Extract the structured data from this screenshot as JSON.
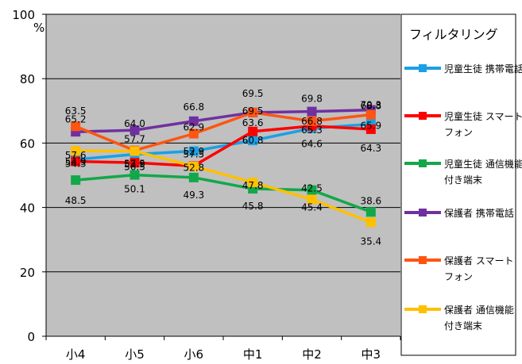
{
  "chart_data": {
    "type": "line",
    "categories": [
      "小4",
      "小5",
      "小6",
      "中1",
      "中2",
      "中3"
    ],
    "y_unit": "%",
    "ylim": [
      0,
      100
    ],
    "yticks": [
      0,
      20,
      40,
      60,
      80,
      100
    ],
    "grid": "horizontal",
    "legend_placement": "right",
    "legend_title": "フィルタリング",
    "series": [
      {
        "name": "児童生徒 携帯電話",
        "color": "#1aa0e6",
        "values": [
          54.9,
          56.5,
          57.5,
          60.8,
          64.6,
          65.9
        ]
      },
      {
        "name": "児童生徒 スマートフォン",
        "color": "#ff0000",
        "values": [
          54.3,
          53.9,
          52.9,
          63.6,
          65.3,
          64.3
        ]
      },
      {
        "name": "児童生徒 通信機能付き端末",
        "color": "#12a84a",
        "values": [
          48.5,
          50.1,
          49.3,
          45.8,
          45.4,
          38.6
        ]
      },
      {
        "name": "保護者 携帯電話",
        "color": "#7030a0",
        "values": [
          63.5,
          64.0,
          66.8,
          69.5,
          69.8,
          70.3
        ]
      },
      {
        "name": "保護者 スマートフォン",
        "color": "#ff5511",
        "values": [
          65.2,
          57.7,
          62.9,
          69.5,
          66.8,
          68.8
        ]
      },
      {
        "name": "保護者 通信機能付き端末",
        "color": "#ffc000",
        "values": [
          57.6,
          57.5,
          52.8,
          47.8,
          42.5,
          35.4
        ]
      }
    ],
    "labels": [
      {
        "text": "65.2",
        "x": 0,
        "y": 65.2,
        "dy": -5
      },
      {
        "text": "63.5",
        "x": 0,
        "y": 63.5,
        "dy": -22
      },
      {
        "text": "57.6",
        "x": 0,
        "y": 57.6,
        "dy": 10
      },
      {
        "text": "54.9",
        "x": 0,
        "y": 54.9,
        "dy": 7
      },
      {
        "text": "54.3",
        "x": 0,
        "y": 54.3,
        "dy": 7
      },
      {
        "text": "48.5",
        "x": 0,
        "y": 48.5,
        "dy": 30
      },
      {
        "text": "64.0",
        "x": 1,
        "y": 64.0,
        "dy": -4
      },
      {
        "text": "57.7",
        "x": 1,
        "y": 57.7,
        "dy": -10
      },
      {
        "text": "56.5",
        "x": 1,
        "y": 56.5,
        "dy": 20
      },
      {
        "text": "53.9",
        "x": 1,
        "y": 53.9,
        "dy": 6
      },
      {
        "text": "57.5",
        "x": 1,
        "y": 57.5,
        "dy": 20
      },
      {
        "text": "50.1",
        "x": 1,
        "y": 50.1,
        "dy": 22
      },
      {
        "text": "66.8",
        "x": 2,
        "y": 66.8,
        "dy": -14
      },
      {
        "text": "62.9",
        "x": 2,
        "y": 62.9,
        "dy": -4
      },
      {
        "text": "57.5",
        "x": 2,
        "y": 57.5,
        "dy": 8
      },
      {
        "text": "52.9",
        "x": 2,
        "y": 52.9,
        "dy": -14
      },
      {
        "text": "52.8",
        "x": 2,
        "y": 52.8,
        "dy": 6
      },
      {
        "text": "49.3",
        "x": 2,
        "y": 49.3,
        "dy": 26
      },
      {
        "text": "69.5",
        "x": 3,
        "y": 69.5,
        "dy": -20
      },
      {
        "text": "69.5",
        "x": 3,
        "y": 69.5,
        "dy": 2
      },
      {
        "text": "60.8",
        "x": 3,
        "y": 60.8,
        "dy": 4
      },
      {
        "text": "63.6",
        "x": 3,
        "y": 63.6,
        "dy": -7
      },
      {
        "text": "47.8",
        "x": 3,
        "y": 47.8,
        "dy": 8
      },
      {
        "text": "45.8",
        "x": 3,
        "y": 45.8,
        "dy": 26
      },
      {
        "text": "69.8",
        "x": 4,
        "y": 69.8,
        "dy": -12
      },
      {
        "text": "66.8",
        "x": 4,
        "y": 66.8,
        "dy": 4
      },
      {
        "text": "65.3",
        "x": 4,
        "y": 65.3,
        "dy": 9
      },
      {
        "text": "64.6",
        "x": 4,
        "y": 64.6,
        "dy": 24
      },
      {
        "text": "42.5",
        "x": 4,
        "y": 42.5,
        "dy": -10
      },
      {
        "text": "45.4",
        "x": 4,
        "y": 45.4,
        "dy": 26
      },
      {
        "text": "70.3",
        "x": 5,
        "y": 70.3,
        "dy": -2
      },
      {
        "text": "68.8",
        "x": 5,
        "y": 68.8,
        "dy": -7
      },
      {
        "text": "65.9",
        "x": 5,
        "y": 65.9,
        "dy": 6
      },
      {
        "text": "64.3",
        "x": 5,
        "y": 64.3,
        "dy": 28
      },
      {
        "text": "38.6",
        "x": 5,
        "y": 38.6,
        "dy": -10
      },
      {
        "text": "35.4",
        "x": 5,
        "y": 35.4,
        "dy": 28
      }
    ]
  }
}
